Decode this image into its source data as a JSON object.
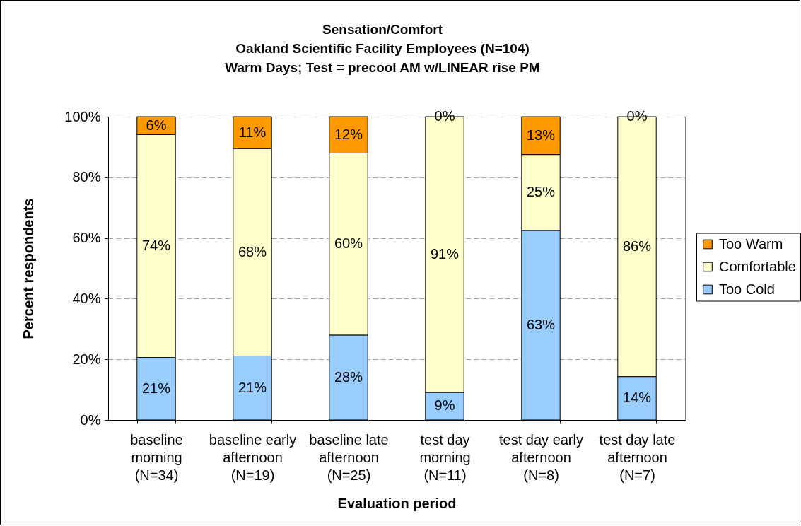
{
  "chart_data": {
    "type": "bar",
    "stacked": true,
    "title": "Sensation/Comfort\nOakland Scientific Facility Employees (N=104)\nWarm Days; Test = precool AM w/LINEAR rise PM",
    "xlabel": "Evaluation period",
    "ylabel": "Percent respondents",
    "categories": [
      "baseline\nmorning\n(N=34)",
      "baseline early\nafternoon\n(N=19)",
      "baseline late\nafternoon\n(N=25)",
      "test day\nmorning\n(N=11)",
      "test day early\nafternoon\n(N=8)",
      "test day late\nafternoon\n(N=7)"
    ],
    "series": [
      {
        "name": "Too Cold",
        "color": "#99ccff",
        "values": [
          20.6,
          21.1,
          28,
          9.1,
          62.5,
          14.3
        ],
        "value_labels": [
          "21%",
          "21%",
          "28%",
          "9%",
          "63%",
          "14%"
        ]
      },
      {
        "name": "Comfortable",
        "color": "#ffffcc",
        "values": [
          73.5,
          68.4,
          60,
          90.9,
          25,
          85.7
        ],
        "value_labels": [
          "74%",
          "68%",
          "60%",
          "91%",
          "25%",
          "86%"
        ]
      },
      {
        "name": "Too Warm",
        "color": "#ff9900",
        "values": [
          5.9,
          10.5,
          12,
          0,
          12.5,
          0
        ],
        "value_labels": [
          "6%",
          "11%",
          "12%",
          "0%",
          "13%",
          "0%"
        ]
      }
    ],
    "ylim": [
      0,
      100
    ],
    "yticks": [
      {
        "value": 0,
        "label": "0%"
      },
      {
        "value": 20,
        "label": "20%"
      },
      {
        "value": 40,
        "label": "40%"
      },
      {
        "value": 60,
        "label": "60%"
      },
      {
        "value": 80,
        "label": "80%"
      },
      {
        "value": 100,
        "label": "100%"
      }
    ],
    "grid": "y",
    "legend": "right"
  }
}
